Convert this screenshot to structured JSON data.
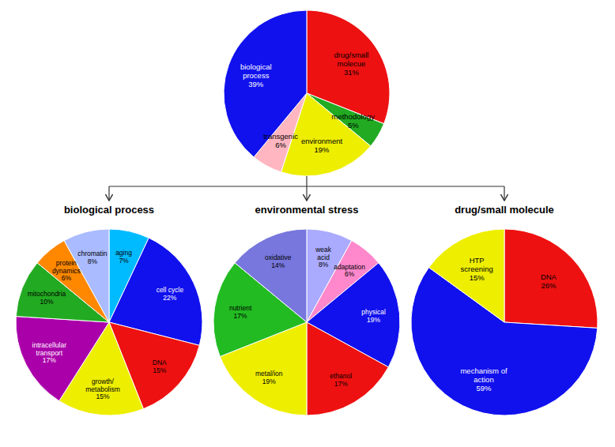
{
  "chart_data": [
    {
      "type": "pie",
      "categories": [
        "drug/small\nmolecue",
        "methodology",
        "environment",
        "transgenic",
        "biological\nprocess"
      ],
      "values": [
        31,
        5,
        19,
        6,
        39
      ],
      "value_labels": [
        "31%",
        "5%",
        "19%",
        "6%",
        "39%"
      ],
      "colors": [
        "#EE1111",
        "#22AA22",
        "#EEEE00",
        "#FFB6C1",
        "#1111EE"
      ],
      "data_labels": true
    },
    {
      "type": "pie",
      "title": "biological process",
      "categories": [
        "aging",
        "cell cycle",
        "DNA",
        "growth/\nmetabolism",
        "intracellular\ntransport",
        "mitochondria",
        "protein\ndynamics",
        "chromatin"
      ],
      "values": [
        7,
        22,
        15,
        15,
        17,
        10,
        6,
        8
      ],
      "value_labels": [
        "7%",
        "22%",
        "15%",
        "15%",
        "17%",
        "10%",
        "6%",
        "8%"
      ],
      "colors": [
        "#00BBFF",
        "#1111EE",
        "#EE1111",
        "#EEEE00",
        "#AA00AA",
        "#22AA22",
        "#FF8800",
        "#AABBFF"
      ],
      "data_labels": true
    },
    {
      "type": "pie",
      "title": "environmental stress",
      "categories": [
        "weak\nacid",
        "adaptation",
        "physical",
        "ethanol",
        "metal/ion",
        "nutrient",
        "oxidative"
      ],
      "values": [
        8,
        6,
        19,
        17,
        19,
        17,
        14
      ],
      "value_labels": [
        "8%",
        "6%",
        "19%",
        "17%",
        "19%",
        "17%",
        "14%"
      ],
      "colors": [
        "#AAAAFF",
        "#FF88CC",
        "#1111EE",
        "#EE1111",
        "#EEEE00",
        "#22BB22",
        "#7777DD"
      ],
      "data_labels": true
    },
    {
      "type": "pie",
      "title": "drug/small molecule",
      "categories": [
        "DNA",
        "mechanism of\naction",
        "HTP\nscreening"
      ],
      "values": [
        26,
        59,
        15
      ],
      "value_labels": [
        "26%",
        "59%",
        "15%"
      ],
      "colors": [
        "#EE1111",
        "#1111EE",
        "#EEEE00"
      ],
      "data_labels": true
    }
  ]
}
